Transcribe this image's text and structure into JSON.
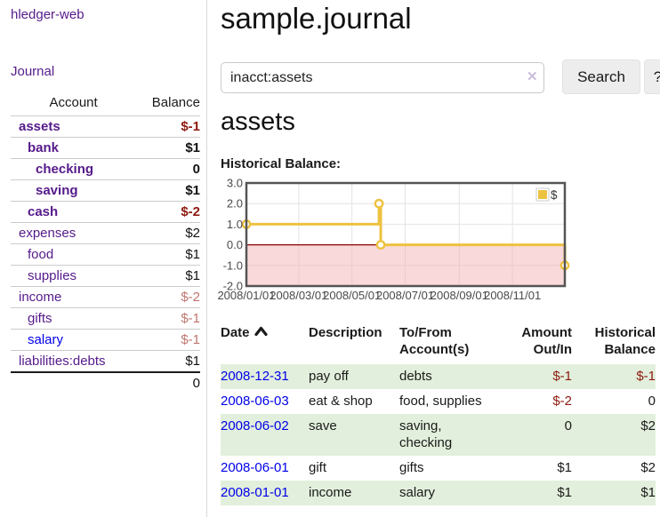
{
  "sidebar": {
    "brand": "hledger-web",
    "journal_label": "Journal",
    "accounts_table": {
      "headers": {
        "account": "Account",
        "balance": "Balance"
      },
      "rows": [
        {
          "name": "assets",
          "depth": 1,
          "bold": true,
          "balance": "$-1",
          "balance_style": "neg-strong",
          "link_color": "purple"
        },
        {
          "name": "bank",
          "depth": 2,
          "bold": true,
          "balance": "$1",
          "balance_style": "pos",
          "link_color": "purple"
        },
        {
          "name": "checking",
          "depth": 3,
          "bold": true,
          "balance": "0",
          "balance_style": "pos",
          "link_color": "purple"
        },
        {
          "name": "saving",
          "depth": 3,
          "bold": true,
          "balance": "$1",
          "balance_style": "pos",
          "link_color": "purple"
        },
        {
          "name": "cash",
          "depth": 2,
          "bold": true,
          "balance": "$-2",
          "balance_style": "neg-strong",
          "link_color": "purple"
        },
        {
          "name": "expenses",
          "depth": 1,
          "bold": false,
          "balance": "$2",
          "balance_style": "pos",
          "link_color": "purple"
        },
        {
          "name": "food",
          "depth": 2,
          "bold": false,
          "balance": "$1",
          "balance_style": "pos",
          "link_color": "purple"
        },
        {
          "name": "supplies",
          "depth": 2,
          "bold": false,
          "balance": "$1",
          "balance_style": "pos",
          "link_color": "purple"
        },
        {
          "name": "income",
          "depth": 1,
          "bold": false,
          "balance": "$-2",
          "balance_style": "neg-soft",
          "link_color": "purple"
        },
        {
          "name": "gifts",
          "depth": 2,
          "bold": false,
          "balance": "$-1",
          "balance_style": "neg-soft",
          "link_color": "purple"
        },
        {
          "name": "salary",
          "depth": 2,
          "bold": false,
          "balance": "$-1",
          "balance_style": "neg-soft",
          "link_color": "blue"
        },
        {
          "name": "liabilities:debts",
          "depth": 1,
          "bold": false,
          "balance": "$1",
          "balance_style": "pos",
          "link_color": "purple"
        }
      ],
      "total": "0"
    }
  },
  "header": {
    "title": "sample.journal"
  },
  "search": {
    "value": "inacct:assets",
    "clear_icon": "✕",
    "button_label": "Search",
    "help_label": "?"
  },
  "account_page": {
    "heading": "assets",
    "chart_label": "Historical Balance:"
  },
  "chart_data": {
    "type": "line",
    "title": "Historical Balance:",
    "step": true,
    "series": [
      {
        "name": "$",
        "color": "#edc240",
        "points": [
          [
            "2008-01-01",
            1
          ],
          [
            "2008-06-01",
            2
          ],
          [
            "2008-06-03",
            0
          ],
          [
            "2008-12-31",
            -1
          ]
        ]
      }
    ],
    "x_ticks": [
      {
        "date": "2008-01-01",
        "label": "2008/01/01"
      },
      {
        "date": "2008-03-01",
        "label": "2008/03/01"
      },
      {
        "date": "2008-05-01",
        "label": "2008/05/01"
      },
      {
        "date": "2008-07-01",
        "label": "2008/07/01"
      },
      {
        "date": "2008-09-01",
        "label": "2008/09/01"
      },
      {
        "date": "2008-11-01",
        "label": "2008/11/01"
      }
    ],
    "y_ticks": [
      {
        "v": 3,
        "label": "3.0"
      },
      {
        "v": 2,
        "label": "2.0"
      },
      {
        "v": 1,
        "label": "1.0"
      },
      {
        "v": 0,
        "label": "0.0"
      },
      {
        "v": -1,
        "label": "-1.0"
      },
      {
        "v": -2,
        "label": "-2.0"
      }
    ],
    "ylim": [
      -2,
      3
    ],
    "xlim": [
      "2008-01-01",
      "2008-12-31"
    ],
    "grid": true,
    "legend_position": "top-right",
    "legend_label": "$",
    "colors": {
      "line": "#edc240",
      "marker_fill": "#ffffff",
      "negative_region": "#f3b4b4",
      "zero_line": "#8b0000",
      "grid": "#e3e3e3",
      "frame": "#555555",
      "axis_text": "#4a4a4a"
    }
  },
  "register_table": {
    "headers": [
      {
        "line1": "Date",
        "line2": "",
        "align": "left",
        "sorted": "asc"
      },
      {
        "line1": "Description",
        "line2": "",
        "align": "left"
      },
      {
        "line1": "To/From",
        "line2": "Account(s)",
        "align": "left"
      },
      {
        "line1": "Amount",
        "line2": "Out/In",
        "align": "right"
      },
      {
        "line1": "Historical",
        "line2": "Balance",
        "align": "right"
      }
    ],
    "rows": [
      {
        "date": "2008-12-31",
        "description": "pay off",
        "accounts_lines": [
          "debts"
        ],
        "amount": "$-1",
        "amount_neg": true,
        "balance": "$-1",
        "balance_neg": true
      },
      {
        "date": "2008-06-03",
        "description": "eat & shop",
        "accounts_lines": [
          "food, supplies"
        ],
        "amount": "$-2",
        "amount_neg": true,
        "balance": "0",
        "balance_neg": false
      },
      {
        "date": "2008-06-02",
        "description": "save",
        "accounts_lines": [
          "saving,",
          "checking"
        ],
        "amount": "0",
        "amount_neg": false,
        "balance": "$2",
        "balance_neg": false
      },
      {
        "date": "2008-06-01",
        "description": "gift",
        "accounts_lines": [
          "gifts"
        ],
        "amount": "$1",
        "amount_neg": false,
        "balance": "$2",
        "balance_neg": false
      },
      {
        "date": "2008-01-01",
        "description": "income",
        "accounts_lines": [
          "salary"
        ],
        "amount": "$1",
        "amount_neg": false,
        "balance": "$1",
        "balance_neg": false
      }
    ]
  },
  "colors": {
    "link_purple": "#551a8b",
    "link_blue": "#0000ee",
    "neg_strong": "#8d1a10",
    "neg_soft": "#bf766e",
    "row_green": "#e2efdc",
    "button_bg": "#ededed"
  }
}
